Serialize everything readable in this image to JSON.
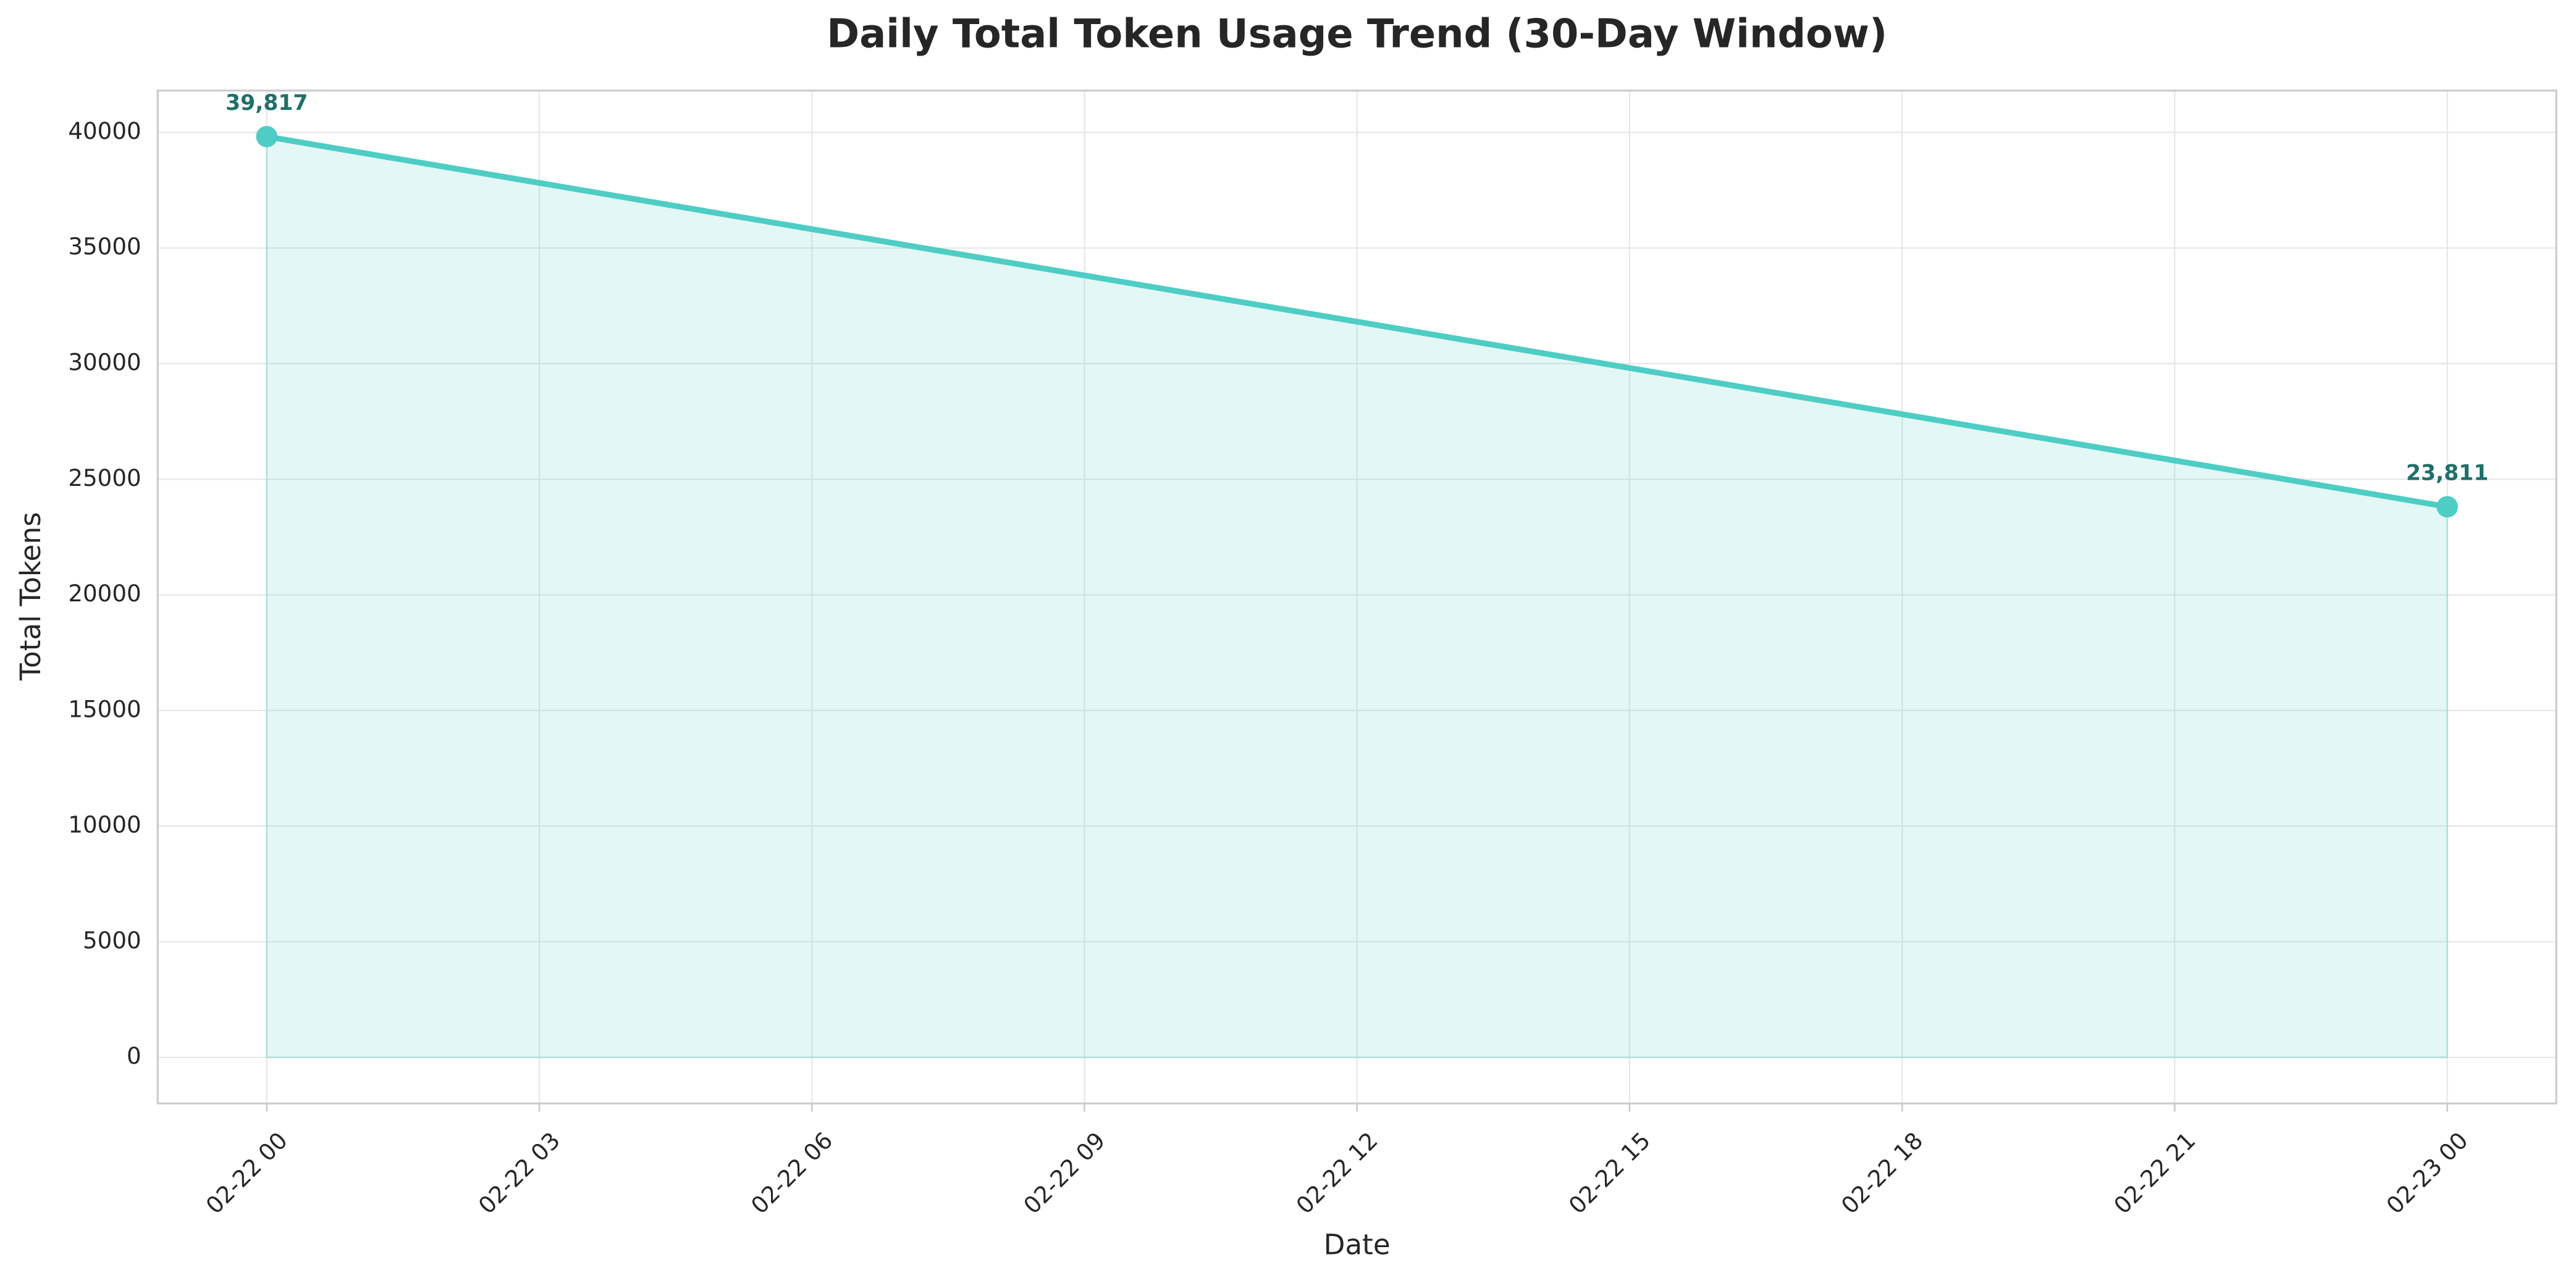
{
  "chart_data": {
    "type": "area-line",
    "title": "Daily Total Token Usage Trend (30-Day Window)",
    "x_label": "Date",
    "y_label": "Total Tokens",
    "x": [
      "02-22 00",
      "02-23 00"
    ],
    "values": [
      39817,
      23811
    ],
    "value_labels": [
      "39,817",
      "23,811"
    ],
    "color": "#4ecdc4",
    "ylim": [
      -1991,
      41808
    ],
    "yticks": [
      0,
      5000,
      10000,
      15000,
      20000,
      25000,
      30000,
      35000,
      40000
    ],
    "xticks": [
      "02-22 00",
      "02-22 03",
      "02-22 06",
      "02-22 09",
      "02-22 12",
      "02-22 15",
      "02-22 18",
      "02-22 21",
      "02-23 00"
    ],
    "grid": true
  }
}
